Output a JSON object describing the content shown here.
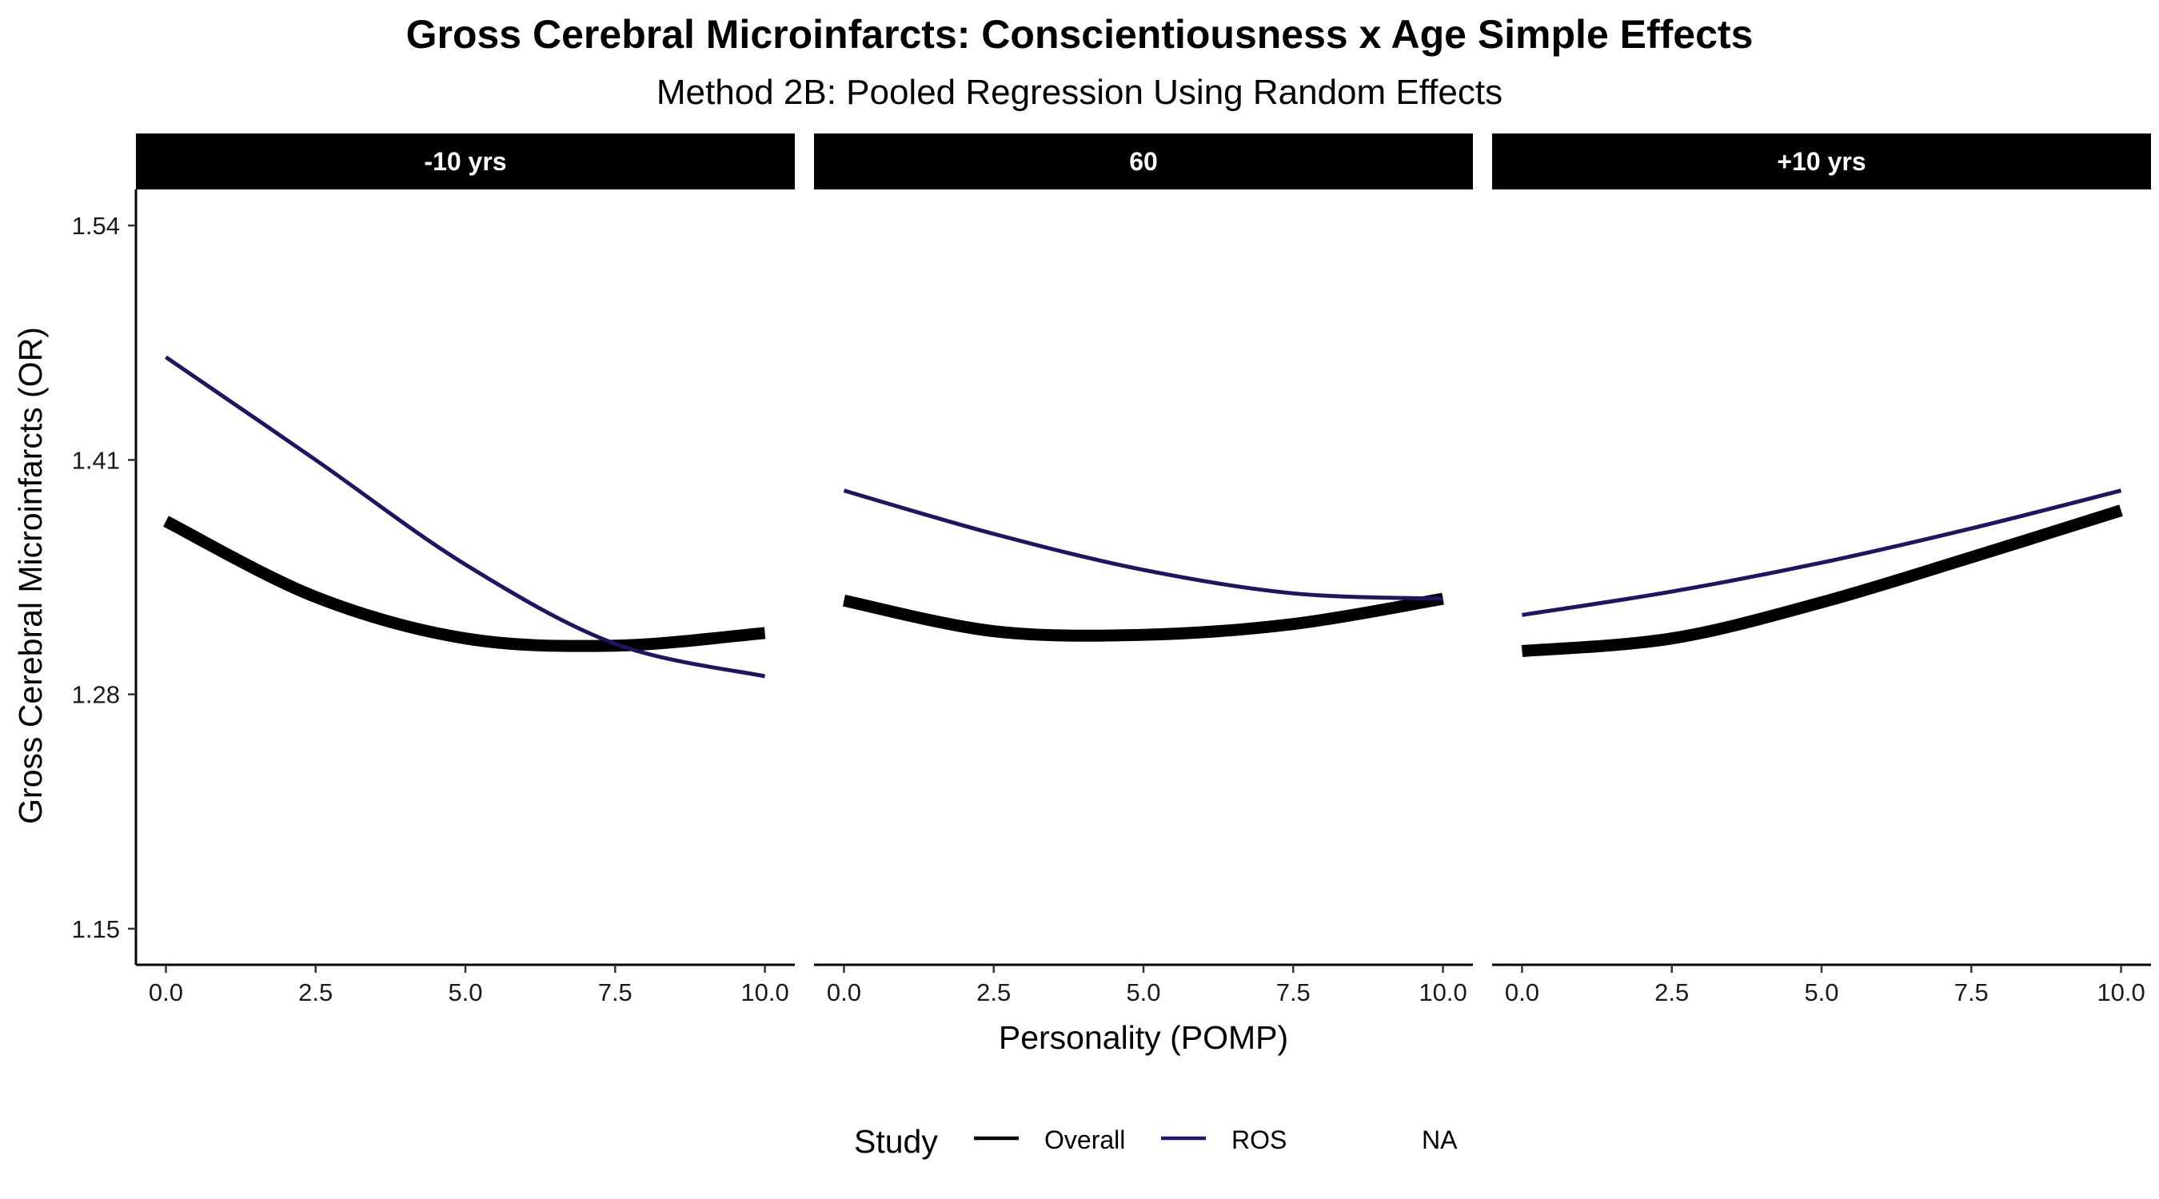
{
  "chart_data": {
    "type": "line",
    "title": "Gross Cerebral Microinfarcts: Conscientiousness x Age Simple Effects",
    "subtitle": "Method 2B: Pooled Regression Using Random Effects",
    "xlabel": "Personality (POMP)",
    "ylabel": "Gross Cerebral Microinfarcts (OR)",
    "xlim": [
      -0.5,
      10.5
    ],
    "ylim": [
      1.13,
      1.56
    ],
    "x_ticks": [
      0.0,
      2.5,
      5.0,
      7.5,
      10.0
    ],
    "x_tick_labels": [
      "0.0",
      "2.5",
      "5.0",
      "7.5",
      "10.0"
    ],
    "y_ticks": [
      1.15,
      1.28,
      1.41,
      1.54
    ],
    "y_tick_labels": [
      "1.15",
      "1.28",
      "1.41",
      "1.54"
    ],
    "grid": false,
    "legend": {
      "title": "Study",
      "position": "bottom",
      "entries": [
        {
          "label": "Overall",
          "color": "#000000"
        },
        {
          "label": "ROS",
          "color": "#24135f"
        },
        {
          "label": "NA",
          "color": null
        }
      ]
    },
    "panels": [
      {
        "label": "-10 yrs",
        "series": [
          {
            "name": "Overall",
            "color": "#000000",
            "x": [
              0,
              2.5,
              5,
              7.5,
              10
            ],
            "y": [
              1.376,
              1.334,
              1.311,
              1.307,
              1.314
            ]
          },
          {
            "name": "ROS",
            "color": "#24135f",
            "x": [
              0,
              2.5,
              5,
              7.5,
              10
            ],
            "y": [
              1.467,
              1.41,
              1.352,
              1.308,
              1.29
            ]
          }
        ]
      },
      {
        "label": "60",
        "series": [
          {
            "name": "Overall",
            "color": "#000000",
            "x": [
              0,
              2.5,
              5,
              7.5,
              10
            ],
            "y": [
              1.332,
              1.315,
              1.313,
              1.319,
              1.333
            ]
          },
          {
            "name": "ROS",
            "color": "#24135f",
            "x": [
              0,
              2.5,
              5,
              7.5,
              10
            ],
            "y": [
              1.393,
              1.369,
              1.349,
              1.336,
              1.333
            ]
          }
        ]
      },
      {
        "label": "+10 yrs",
        "series": [
          {
            "name": "Overall",
            "color": "#000000",
            "x": [
              0,
              2.5,
              5,
              7.5,
              10
            ],
            "y": [
              1.304,
              1.311,
              1.331,
              1.356,
              1.382
            ]
          },
          {
            "name": "ROS",
            "color": "#24135f",
            "x": [
              0,
              2.5,
              5,
              7.5,
              10
            ],
            "y": [
              1.324,
              1.337,
              1.353,
              1.372,
              1.393
            ]
          }
        ]
      }
    ]
  }
}
